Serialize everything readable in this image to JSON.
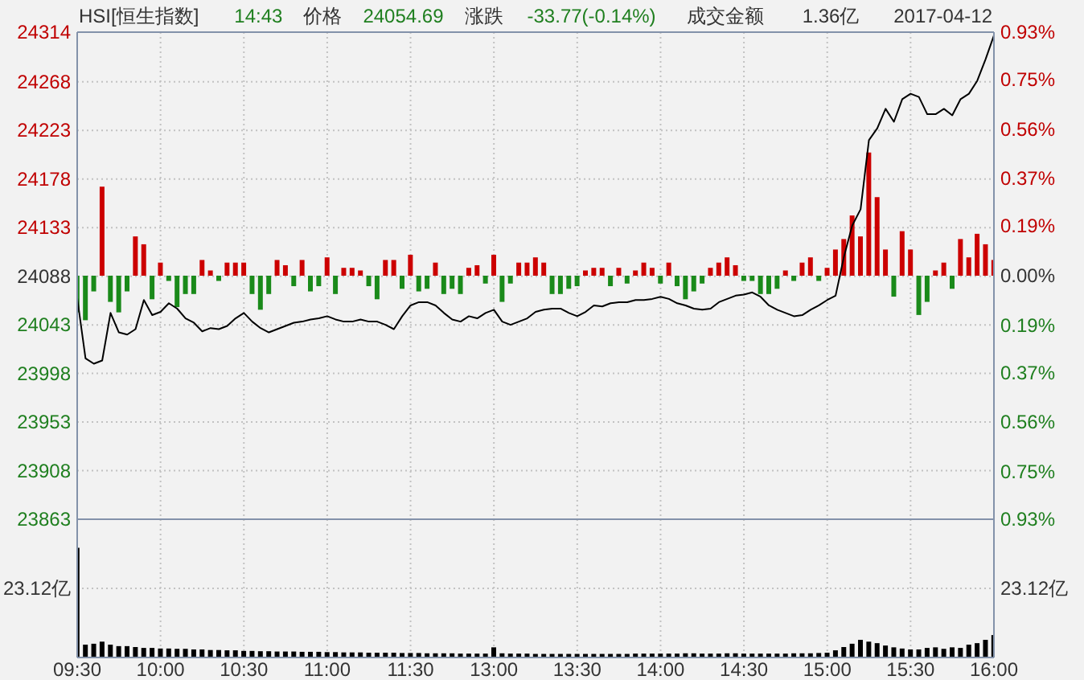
{
  "chart_data": [
    {
      "type": "line",
      "title": "HSI[恒生指数]",
      "annotations": [
        "14:43",
        "价格",
        "24054.69",
        "涨跌",
        "-33.77(-0.14%)",
        "成交金额",
        "1.36亿",
        "2017-04-12"
      ],
      "categories": [
        null,
        null,
        null,
        null,
        null,
        null,
        null,
        null,
        null,
        null,
        null,
        null,
        null,
        null,
        null,
        null,
        null,
        null,
        null,
        null,
        null,
        null,
        null,
        null,
        null,
        null,
        null,
        null,
        null,
        null,
        null,
        null,
        null,
        null,
        null,
        null,
        null,
        null,
        null,
        null,
        null,
        null,
        null,
        null,
        null,
        null,
        null,
        null,
        null,
        null,
        null,
        null,
        null,
        null,
        null,
        null,
        null,
        null,
        null,
        null,
        null,
        null,
        null,
        null,
        null,
        null,
        null,
        null,
        null,
        null,
        null,
        null,
        null,
        null,
        null,
        null,
        null,
        null,
        null,
        null,
        null,
        null,
        null,
        null,
        null,
        null,
        null,
        null,
        null,
        null,
        null,
        null,
        null,
        null,
        null,
        null,
        null,
        null,
        null,
        null,
        null,
        null,
        null,
        null,
        null,
        null,
        null,
        null,
        null,
        null,
        null
      ],
      "series": [
        {
          "type": "bar",
          "axis": "y2",
          "values": [
            -0.14,
            -0.17,
            -0.06,
            0.34,
            -0.1,
            -0.14,
            -0.06,
            0.15,
            0.12,
            -0.09,
            0.05,
            -0.02,
            -0.12,
            -0.07,
            -0.07,
            0.06,
            0.02,
            -0.02,
            0.05,
            0.05,
            0.05,
            -0.07,
            -0.13,
            -0.07,
            0.06,
            0.04,
            -0.04,
            0.06,
            -0.06,
            -0.04,
            0.07,
            -0.07,
            0.03,
            0.03,
            0.02,
            -0.04,
            -0.09,
            0.06,
            0.06,
            -0.05,
            0.08,
            -0.06,
            -0.05,
            0.05,
            -0.07,
            -0.05,
            -0.07,
            0.03,
            0.04,
            -0.03,
            0.08,
            -0.1,
            -0.03,
            0.05,
            0.05,
            0.07,
            0.05,
            -0.07,
            -0.07,
            -0.05,
            -0.04,
            0.02,
            0.03,
            0.03,
            -0.04,
            0.03,
            -0.03,
            0.02,
            0.05,
            0.03,
            -0.03,
            0.05,
            -0.04,
            -0.09,
            -0.06,
            -0.03,
            0.03,
            0.05,
            0.07,
            0.04,
            -0.02,
            -0.02,
            -0.07,
            -0.07,
            -0.05,
            0.02,
            -0.02,
            0.05,
            0.07,
            -0.02,
            0.03,
            0.1,
            0.14,
            0.23,
            0.15,
            0.47,
            0.3,
            0.1,
            -0.08,
            0.17,
            0.1,
            -0.15,
            -0.1,
            0.02,
            0.05,
            -0.05,
            0.14,
            0.07,
            0.16,
            0.12,
            0.06
          ],
          "colors": [
            "#1a8a1a",
            "#1a8a1a",
            "#1a8a1a",
            "#cc0000",
            "#1a8a1a",
            "#1a8a1a",
            "#1a8a1a",
            "#cc0000",
            "#cc0000",
            "#1a8a1a",
            "#cc0000",
            "#1a8a1a",
            "#1a8a1a",
            "#1a8a1a",
            "#1a8a1a",
            "#cc0000",
            "#cc0000",
            "#1a8a1a",
            "#cc0000",
            "#cc0000",
            "#cc0000",
            "#1a8a1a",
            "#1a8a1a",
            "#1a8a1a",
            "#cc0000",
            "#cc0000",
            "#1a8a1a",
            "#cc0000",
            "#1a8a1a",
            "#1a8a1a",
            "#cc0000",
            "#1a8a1a",
            "#cc0000",
            "#cc0000",
            "#cc0000",
            "#1a8a1a",
            "#1a8a1a",
            "#cc0000",
            "#cc0000",
            "#1a8a1a",
            "#cc0000",
            "#1a8a1a",
            "#1a8a1a",
            "#cc0000",
            "#1a8a1a",
            "#1a8a1a",
            "#1a8a1a",
            "#cc0000",
            "#cc0000",
            "#1a8a1a",
            "#cc0000",
            "#1a8a1a",
            "#1a8a1a",
            "#cc0000",
            "#cc0000",
            "#cc0000",
            "#cc0000",
            "#1a8a1a",
            "#1a8a1a",
            "#1a8a1a",
            "#1a8a1a",
            "#cc0000",
            "#cc0000",
            "#cc0000",
            "#1a8a1a",
            "#cc0000",
            "#1a8a1a",
            "#cc0000",
            "#cc0000",
            "#cc0000",
            "#1a8a1a",
            "#cc0000",
            "#1a8a1a",
            "#1a8a1a",
            "#1a8a1a",
            "#1a8a1a",
            "#cc0000",
            "#cc0000",
            "#cc0000",
            "#cc0000",
            "#1a8a1a",
            "#1a8a1a",
            "#1a8a1a",
            "#1a8a1a",
            "#1a8a1a",
            "#cc0000",
            "#1a8a1a",
            "#cc0000",
            "#cc0000",
            "#1a8a1a",
            "#cc0000",
            "#cc0000",
            "#cc0000",
            "#cc0000",
            "#cc0000",
            "#cc0000",
            "#cc0000",
            "#cc0000",
            "#1a8a1a",
            "#cc0000",
            "#cc0000",
            "#1a8a1a",
            "#1a8a1a",
            "#cc0000",
            "#cc0000",
            "#1a8a1a",
            "#cc0000",
            "#cc0000",
            "#cc0000",
            "#cc0000",
            "#cc0000"
          ]
        },
        {
          "color": "#000000",
          "values": [
            24068,
            24012,
            24007,
            24010,
            24054,
            24036,
            24034,
            24039,
            24066,
            24052,
            24055,
            24063,
            24058,
            24049,
            24045,
            24037,
            24040,
            24039,
            24042,
            24049,
            24054,
            24046,
            24040,
            24036,
            24039,
            24042,
            24045,
            24046,
            24048,
            24049,
            24051,
            24048,
            24046,
            24046,
            24048,
            24046,
            24046,
            24043,
            24039,
            24051,
            24061,
            24064,
            24064,
            24061,
            24054,
            24048,
            24046,
            24051,
            24049,
            24054,
            24057,
            24046,
            24043,
            24046,
            24049,
            24055,
            24057,
            24058,
            24058,
            24054,
            24051,
            24055,
            24061,
            24060,
            24063,
            24064,
            24064,
            24066,
            24066,
            24067,
            24069,
            24067,
            24063,
            24061,
            24058,
            24057,
            24058,
            24064,
            24067,
            24070,
            24071,
            24073,
            24069,
            24061,
            24057,
            24054,
            24051,
            24052,
            24057,
            24061,
            24066,
            24070,
            24106,
            24135,
            24150,
            24214,
            24225,
            24243,
            24231,
            24252,
            24257,
            24254,
            24238,
            24238,
            24243,
            24237,
            24252,
            24257,
            24269,
            24289,
            24311
          ]
        }
      ],
      "ylim": [
        23863,
        24314
      ],
      "yticks": [
        23863,
        23908,
        23953,
        23998,
        24043,
        24088,
        24133,
        24178,
        24223,
        24268,
        24314
      ],
      "y2lim": [
        -0.93,
        0.93
      ],
      "y2ticks": [
        {
          "value": -0.93,
          "label": "0.93%"
        },
        {
          "value": -0.75,
          "label": "0.75%"
        },
        {
          "value": -0.56,
          "label": "0.56%"
        },
        {
          "value": -0.37,
          "label": "0.37%"
        },
        {
          "value": -0.19,
          "label": "0.19%"
        },
        {
          "value": 0,
          "label": "0.00%"
        },
        {
          "value": 0.19,
          "label": "0.19%"
        },
        {
          "value": 0.37,
          "label": "0.37%"
        },
        {
          "value": 0.56,
          "label": "0.56%"
        },
        {
          "value": 0.75,
          "label": "0.75%"
        },
        {
          "value": 0.93,
          "label": "0.93%"
        }
      ],
      "grid": true,
      "tick_labels": "y"
    },
    {
      "type": "bar",
      "annotations": [
        "23.12亿"
      ],
      "categories": [
        "09:30",
        null,
        null,
        null,
        null,
        null,
        null,
        null,
        null,
        null,
        "10:00",
        null,
        null,
        null,
        null,
        null,
        null,
        null,
        null,
        null,
        "10:30",
        null,
        null,
        null,
        null,
        null,
        null,
        null,
        null,
        null,
        "11:00",
        null,
        null,
        null,
        null,
        null,
        null,
        null,
        null,
        null,
        "11:30",
        null,
        null,
        null,
        null,
        null,
        null,
        null,
        null,
        null,
        "13:00",
        null,
        null,
        null,
        null,
        null,
        null,
        null,
        null,
        null,
        "13:30",
        null,
        null,
        null,
        null,
        null,
        null,
        null,
        null,
        null,
        "14:00",
        null,
        null,
        null,
        null,
        null,
        null,
        null,
        null,
        null,
        "14:30",
        null,
        null,
        null,
        null,
        null,
        null,
        null,
        null,
        null,
        "15:00",
        null,
        null,
        null,
        null,
        null,
        null,
        null,
        null,
        null,
        "15:30",
        null,
        null,
        null,
        null,
        null,
        null,
        null,
        null,
        null,
        "16:00"
      ],
      "values": [
        36.7,
        4.3,
        4.6,
        5.3,
        4.3,
        3.8,
        3.8,
        3.5,
        3.2,
        3.2,
        3.0,
        3.0,
        2.9,
        2.9,
        2.7,
        2.7,
        2.5,
        2.5,
        2.4,
        2.4,
        2.2,
        2.2,
        2.1,
        2.1,
        2.0,
        2.0,
        2.0,
        1.9,
        1.9,
        1.9,
        1.8,
        1.8,
        1.7,
        1.7,
        1.7,
        1.6,
        1.6,
        1.6,
        1.6,
        1.5,
        1.5,
        1.5,
        1.4,
        1.4,
        1.4,
        1.4,
        1.3,
        1.3,
        1.3,
        1.3,
        3.4,
        1.4,
        1.3,
        1.3,
        1.3,
        1.2,
        1.2,
        1.2,
        1.2,
        1.2,
        1.2,
        1.2,
        1.2,
        1.2,
        1.2,
        1.2,
        1.2,
        1.3,
        1.3,
        1.3,
        1.3,
        1.3,
        1.3,
        1.4,
        1.4,
        1.3,
        1.3,
        1.3,
        1.4,
        1.4,
        1.3,
        1.3,
        1.3,
        1.3,
        1.3,
        1.3,
        1.4,
        1.4,
        1.4,
        1.5,
        1.6,
        2.4,
        3.5,
        4.6,
        5.9,
        5.3,
        4.8,
        4.0,
        3.4,
        3.0,
        2.7,
        2.7,
        3.2,
        3.4,
        2.9,
        3.4,
        3.2,
        4.3,
        4.8,
        5.9,
        7.5
      ],
      "color": "#000000",
      "ylim": [
        0,
        46.24
      ],
      "yticks": [
        {
          "value": 23.12,
          "label": "23.12亿"
        }
      ],
      "grid": true
    }
  ]
}
